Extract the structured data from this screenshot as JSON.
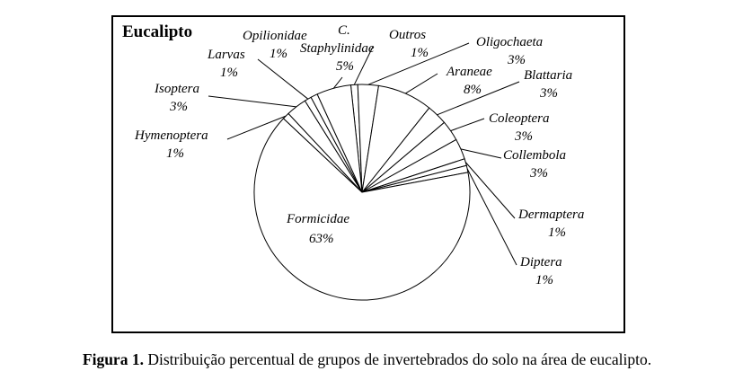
{
  "chart_data": {
    "type": "pie",
    "title": "Eucalipto",
    "slices": [
      {
        "name": "Outros",
        "value": 1,
        "label": "1%"
      },
      {
        "name": "Oligochaeta",
        "value": 3,
        "label": "3%"
      },
      {
        "name": "Araneae",
        "value": 8,
        "label": "8%"
      },
      {
        "name": "Blattaria",
        "value": 3,
        "label": "3%"
      },
      {
        "name": "Coleoptera",
        "value": 3,
        "label": "3%"
      },
      {
        "name": "Collembola",
        "value": 3,
        "label": "3%"
      },
      {
        "name": "Dermaptera",
        "value": 1,
        "label": "1%"
      },
      {
        "name": "Diptera",
        "value": 1,
        "label": "1%"
      },
      {
        "name": "Formicidae",
        "value": 63,
        "label": "63%"
      },
      {
        "name": "Hymenoptera",
        "value": 1,
        "label": "1%"
      },
      {
        "name": "Isoptera",
        "value": 3,
        "label": "3%"
      },
      {
        "name": "Larvas",
        "value": 1,
        "label": "1%"
      },
      {
        "name": "Opilionidae",
        "value": 1,
        "label": "1%"
      },
      {
        "name": "C. Staphylinidae",
        "value": 5,
        "label": "5%"
      }
    ],
    "slice_fill": "#ffffff",
    "slice_stroke": "#000000"
  },
  "caption": {
    "prefix": "Figura 1.",
    "text": " Distribuição percentual de grupos de invertebrados do solo na área de eucalipto."
  }
}
